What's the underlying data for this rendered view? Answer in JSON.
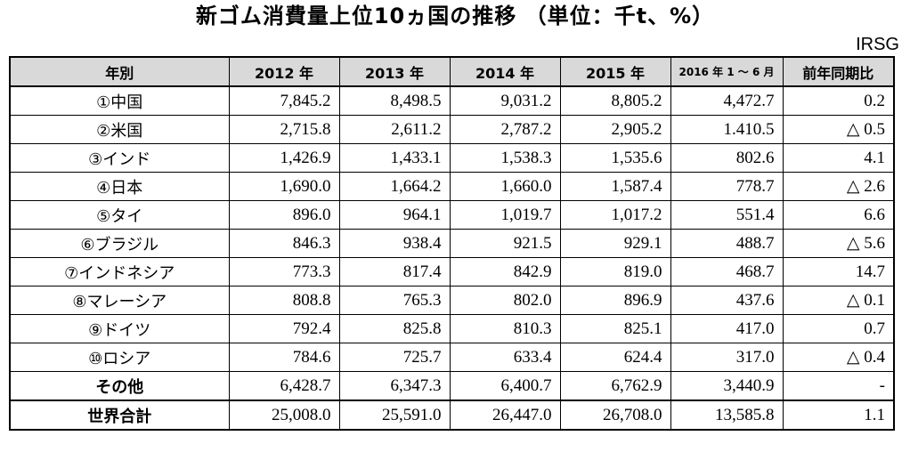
{
  "title": "新ゴム消費量上位10ヵ国の推移 （単位：千t、%）",
  "source": "IRSG",
  "chart_data": {
    "type": "table",
    "columns": [
      "年別",
      "2012 年",
      "2013 年",
      "2014 年",
      "2015 年",
      "2016 年 1 ～ 6 月",
      "前年同期比"
    ],
    "rows": [
      {
        "label": "①中国",
        "values": [
          "7,845.2",
          "8,498.5",
          "9,031.2",
          "8,805.2",
          "4,472.7",
          "0.2"
        ]
      },
      {
        "label": "②米国",
        "values": [
          "2,715.8",
          "2,611.2",
          "2,787.2",
          "2,905.2",
          "1.410.5",
          "△ 0.5"
        ]
      },
      {
        "label": "③インド",
        "values": [
          "1,426.9",
          "1,433.1",
          "1,538.3",
          "1,535.6",
          "802.6",
          "4.1"
        ]
      },
      {
        "label": "④日本",
        "values": [
          "1,690.0",
          "1,664.2",
          "1,660.0",
          "1,587.4",
          "778.7",
          "△ 2.6"
        ]
      },
      {
        "label": "⑤タイ",
        "values": [
          "896.0",
          "964.1",
          "1,019.7",
          "1,017.2",
          "551.4",
          "6.6"
        ]
      },
      {
        "label": "⑥ブラジル",
        "values": [
          "846.3",
          "938.4",
          "921.5",
          "929.1",
          "488.7",
          "△ 5.6"
        ]
      },
      {
        "label": "⑦インドネシア",
        "values": [
          "773.3",
          "817.4",
          "842.9",
          "819.0",
          "468.7",
          "14.7"
        ]
      },
      {
        "label": "⑧マレーシア",
        "values": [
          "808.8",
          "765.3",
          "802.0",
          "896.9",
          "437.6",
          "△ 0.1"
        ]
      },
      {
        "label": "⑨ドイツ",
        "values": [
          "792.4",
          "825.8",
          "810.3",
          "825.1",
          "417.0",
          "0.7"
        ]
      },
      {
        "label": "⑩ロシア",
        "values": [
          "784.6",
          "725.7",
          "633.4",
          "624.4",
          "317.0",
          "△ 0.4"
        ]
      },
      {
        "label": "その他",
        "values": [
          "6,428.7",
          "6,347.3",
          "6,400.7",
          "6,762.9",
          "3,440.9",
          "-"
        ]
      },
      {
        "label": "世界合計",
        "values": [
          "25,008.0",
          "25,591.0",
          "26,447.0",
          "26,708.0",
          "13,585.8",
          "1.1"
        ]
      }
    ]
  }
}
